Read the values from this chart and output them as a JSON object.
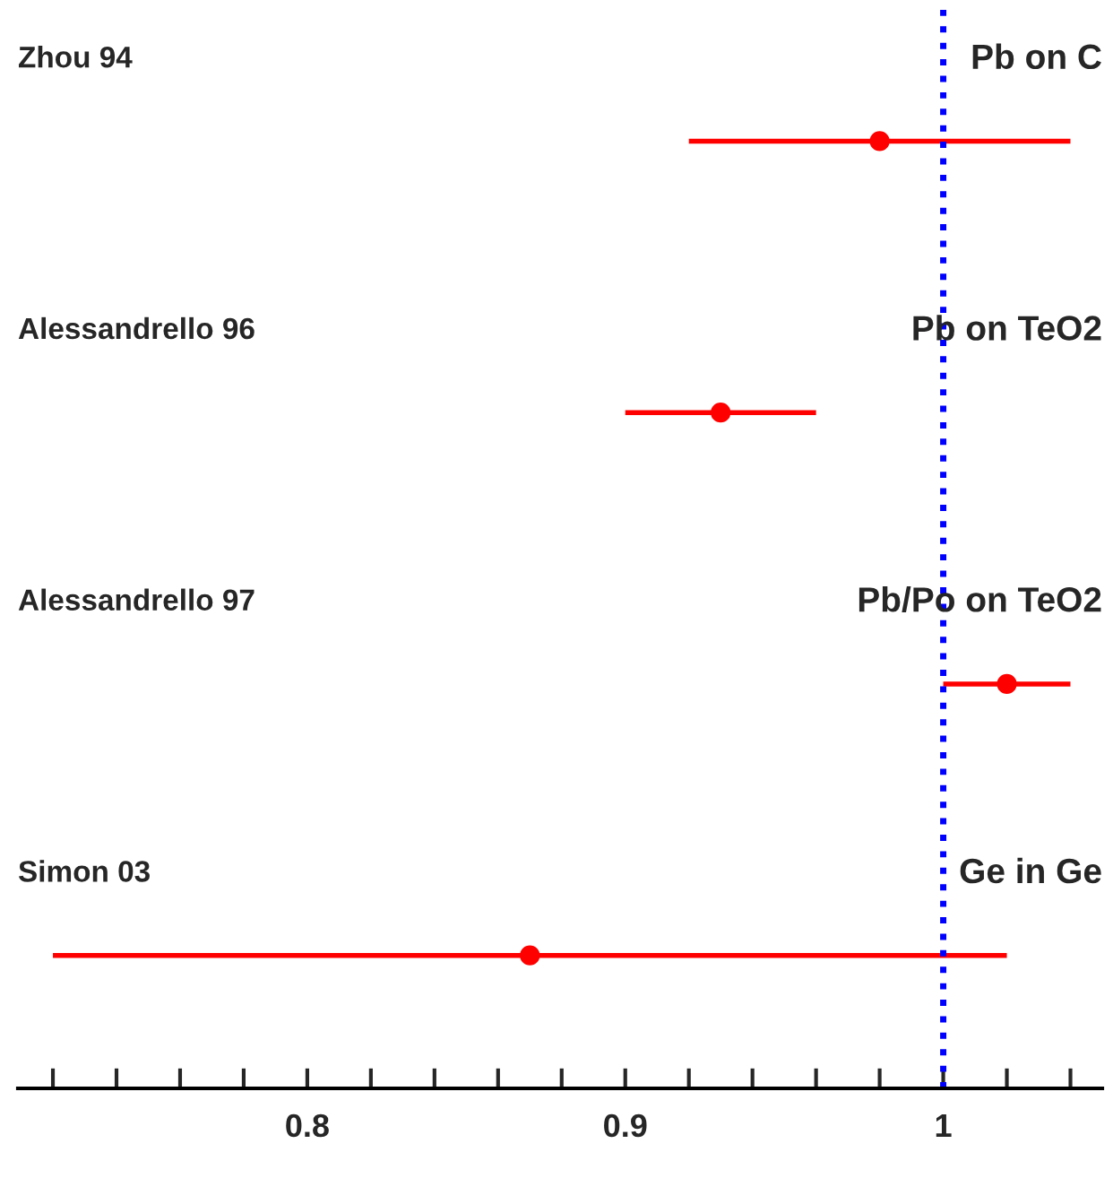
{
  "chart_data": {
    "type": "scatter",
    "categories": [
      "Zhou 94",
      "Alessandrello 96",
      "Alessandrello 97",
      "Simon 03"
    ],
    "orientation": "horizontal",
    "values": [
      0.98,
      0.93,
      1.02,
      0.87
    ],
    "errors": [
      [
        0.92,
        1.04
      ],
      [
        0.9,
        0.96
      ],
      [
        1.0,
        1.04
      ],
      [
        0.72,
        1.02
      ]
    ],
    "color": "#ff0000",
    "marker": "circle",
    "xlim": [
      0.709,
      1.05
    ],
    "xticks": [
      {
        "value": 0.72,
        "label": null
      },
      {
        "value": 0.74,
        "label": null
      },
      {
        "value": 0.76,
        "label": null
      },
      {
        "value": 0.78,
        "label": null
      },
      0.8,
      {
        "value": 0.82,
        "label": null
      },
      {
        "value": 0.84,
        "label": null
      },
      {
        "value": 0.86,
        "label": null
      },
      {
        "value": 0.88,
        "label": null
      },
      0.9,
      {
        "value": 0.92,
        "label": null
      },
      {
        "value": 0.94,
        "label": null
      },
      {
        "value": 0.96,
        "label": null
      },
      {
        "value": 0.98,
        "label": null
      },
      1,
      {
        "value": 1.02,
        "label": null
      },
      {
        "value": 1.04,
        "label": null
      }
    ],
    "ref_lines": [
      {
        "axis": "x",
        "value": 1,
        "color": "#0000ff",
        "line_style": "dotted"
      }
    ],
    "annotations": [
      "Pb on C",
      "Pb on TeO2",
      "Pb/Po on TeO2",
      "Ge in Ge"
    ],
    "grid": false,
    "legend": false
  }
}
